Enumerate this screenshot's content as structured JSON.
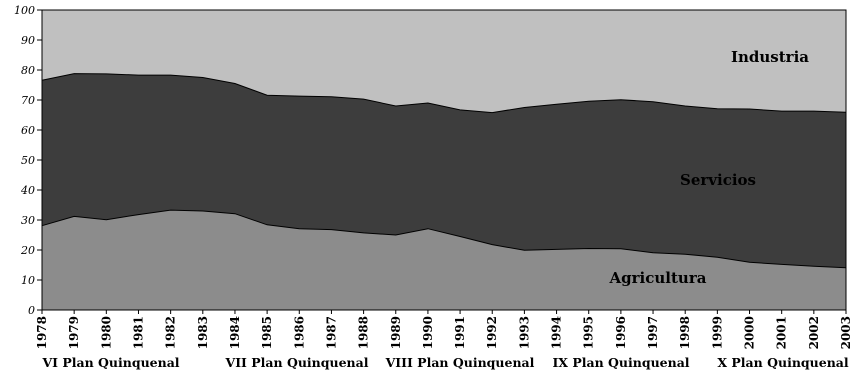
{
  "chart_data": {
    "type": "area",
    "stacked": true,
    "x": [
      1978,
      1979,
      1980,
      1981,
      1982,
      1983,
      1984,
      1985,
      1986,
      1987,
      1988,
      1989,
      1990,
      1991,
      1992,
      1993,
      1994,
      1995,
      1996,
      1997,
      1998,
      1999,
      2000,
      2001,
      2002,
      2003
    ],
    "ylim": [
      0,
      100
    ],
    "yticks": [
      0,
      10,
      20,
      30,
      40,
      50,
      60,
      70,
      80,
      90,
      100
    ],
    "grid": false,
    "series": [
      {
        "name": "Agricultura",
        "color": "#8c8c8c",
        "values": [
          28.1,
          31.2,
          30.1,
          31.8,
          33.3,
          33.0,
          32.1,
          28.4,
          27.1,
          26.8,
          25.7,
          25.0,
          27.1,
          24.5,
          21.8,
          19.9,
          20.2,
          20.5,
          20.4,
          19.1,
          18.6,
          17.6,
          15.9,
          15.2,
          14.6,
          14.1
        ]
      },
      {
        "name": "Servicios",
        "color": "#3d3d3d",
        "values": [
          48.5,
          47.6,
          48.6,
          46.5,
          45.0,
          44.5,
          43.4,
          43.2,
          44.2,
          44.3,
          44.6,
          43.0,
          41.9,
          42.2,
          44.0,
          47.6,
          48.4,
          49.1,
          49.7,
          50.3,
          49.4,
          49.5,
          51.1,
          51.1,
          51.7,
          51.8
        ]
      },
      {
        "name": "Industria",
        "color": "#c0c0c0",
        "values": [
          23.4,
          21.2,
          21.3,
          21.7,
          21.7,
          22.5,
          24.5,
          28.4,
          28.7,
          28.9,
          29.7,
          32.0,
          31.0,
          33.3,
          34.2,
          32.5,
          31.4,
          30.4,
          29.9,
          30.6,
          32.0,
          32.9,
          33.0,
          33.7,
          33.7,
          34.1
        ]
      }
    ],
    "plan_labels": [
      "VI Plan Quinquenal",
      "VII Plan Quinquenal",
      "VIII Plan Quinquenal",
      "IX Plan Quinquenal",
      "X Plan Quinquenal"
    ]
  }
}
